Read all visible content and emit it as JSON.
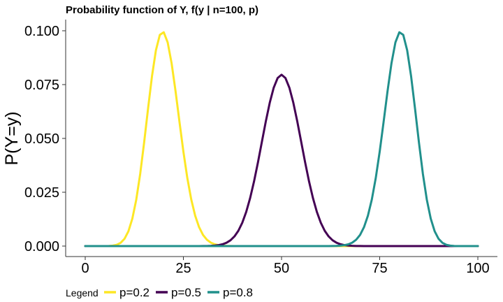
{
  "chart_data": {
    "type": "line",
    "title": "Probability function of Y, f(y | n=100, p)",
    "xlabel": "",
    "ylabel": "P(Y=y)",
    "xlim": [
      0,
      100
    ],
    "ylim": [
      0,
      0.1
    ],
    "x_ticks": [
      0,
      25,
      50,
      75,
      100
    ],
    "x_tick_labels": [
      "0",
      "25",
      "50",
      "75",
      "100"
    ],
    "y_ticks": [
      0,
      0.025,
      0.05,
      0.075,
      0.1
    ],
    "y_tick_labels": [
      "0.000",
      "0.025",
      "0.050",
      "0.075",
      "0.100"
    ],
    "grid": false,
    "legend": {
      "title": "Legend",
      "placement": "bottom"
    },
    "n": 100,
    "series": [
      {
        "name": "p=0.2",
        "p": 0.2,
        "color": "#fde725"
      },
      {
        "name": "p=0.5",
        "p": 0.5,
        "color": "#440154"
      },
      {
        "name": "p=0.8",
        "p": 0.8,
        "color": "#21908c"
      }
    ]
  }
}
